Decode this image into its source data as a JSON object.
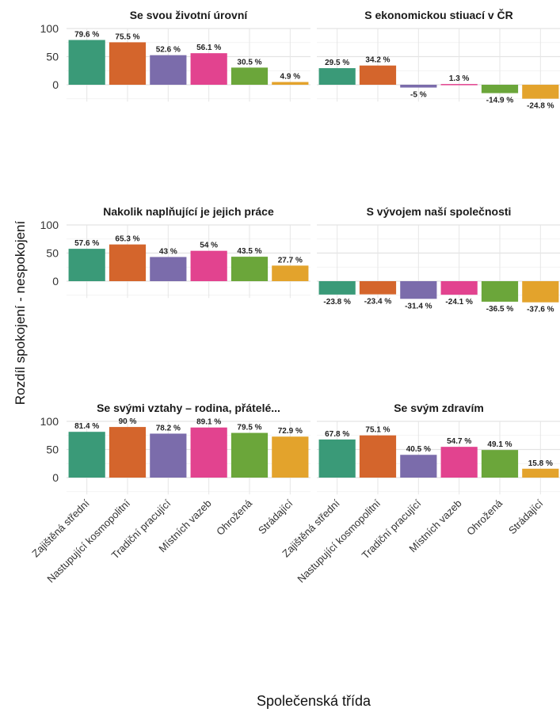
{
  "chart_data": {
    "type": "bar",
    "xlabel": "Společenská třída",
    "ylabel": "Rozdíl spokojení - nespokojení",
    "categories": [
      "Zajištěná střední",
      "Nastupující kosmopolitní",
      "Tradiční pracující",
      "Místních vazeb",
      "Ohrožená",
      "Strádající"
    ],
    "colors": [
      "#3a9a78",
      "#d4652c",
      "#7b6cab",
      "#e2438f",
      "#6ba63a",
      "#e3a32c"
    ],
    "ylim": [
      -30,
      100
    ],
    "yticks": [
      0,
      50,
      100
    ],
    "grid": true,
    "panels": [
      {
        "title": "Se svou životní úrovní",
        "values": [
          79.6,
          75.5,
          52.6,
          56.1,
          30.5,
          4.9
        ],
        "labels": [
          "79.6 %",
          "75.5 %",
          "52.6 %",
          "56.1 %",
          "30.5 %",
          "4.9 %"
        ]
      },
      {
        "title": "S ekonomickou stiuací v ČR",
        "values": [
          29.5,
          34.2,
          -5,
          1.3,
          -14.9,
          -24.8
        ],
        "labels": [
          "29.5 %",
          "34.2 %",
          "-5 %",
          "1.3 %",
          "-14.9 %",
          "-24.8 %"
        ]
      },
      {
        "title": "Nakolik naplňující je jejich práce",
        "values": [
          57.6,
          65.3,
          43,
          54,
          43.5,
          27.7
        ],
        "labels": [
          "57.6 %",
          "65.3 %",
          "43 %",
          "54 %",
          "43.5 %",
          "27.7 %"
        ]
      },
      {
        "title": "S vývojem naší společnosti",
        "values": [
          -23.8,
          -23.4,
          -31.4,
          -24.1,
          -36.5,
          -37.6
        ],
        "labels": [
          "-23.8 %",
          "-23.4 %",
          "-31.4 %",
          "-24.1 %",
          "-36.5 %",
          "-37.6 %"
        ]
      },
      {
        "title": "Se svými vztahy – rodina, přátelé...",
        "values": [
          81.4,
          90,
          78.2,
          89.1,
          79.5,
          72.9
        ],
        "labels": [
          "81.4 %",
          "90 %",
          "78.2 %",
          "89.1 %",
          "79.5 %",
          "72.9 %"
        ]
      },
      {
        "title": "Se svým zdravím",
        "values": [
          67.8,
          75.1,
          40.5,
          54.7,
          49.1,
          15.8
        ],
        "labels": [
          "67.8 %",
          "75.1 %",
          "40.5 %",
          "54.7 %",
          "49.1 %",
          "15.8 %"
        ]
      }
    ]
  }
}
